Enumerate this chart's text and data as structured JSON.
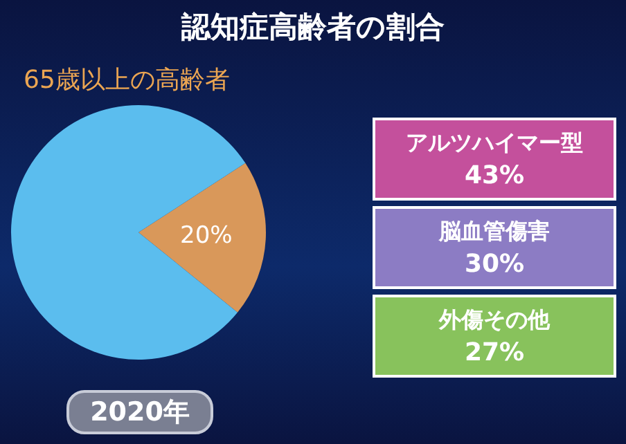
{
  "chart_data": [
    {
      "type": "pie",
      "title": "認知症高齢者の割合",
      "subtitle": "65歳以上の高齢者",
      "categories": [
        null,
        null
      ],
      "values": [
        20,
        80
      ],
      "colors": [
        "#d9985a",
        "#5bbdee"
      ],
      "value_labels": [
        "20%",
        null
      ],
      "annotations": [
        "2020年"
      ]
    },
    {
      "type": "other",
      "categories": [
        "アルツハイマー型",
        "脳血管傷害",
        "外傷その他"
      ],
      "colors": [
        "#c4509c",
        "#8c7cc4",
        "#88c25c"
      ],
      "value_labels": [
        "43%",
        "30%",
        "27%"
      ]
    }
  ]
}
